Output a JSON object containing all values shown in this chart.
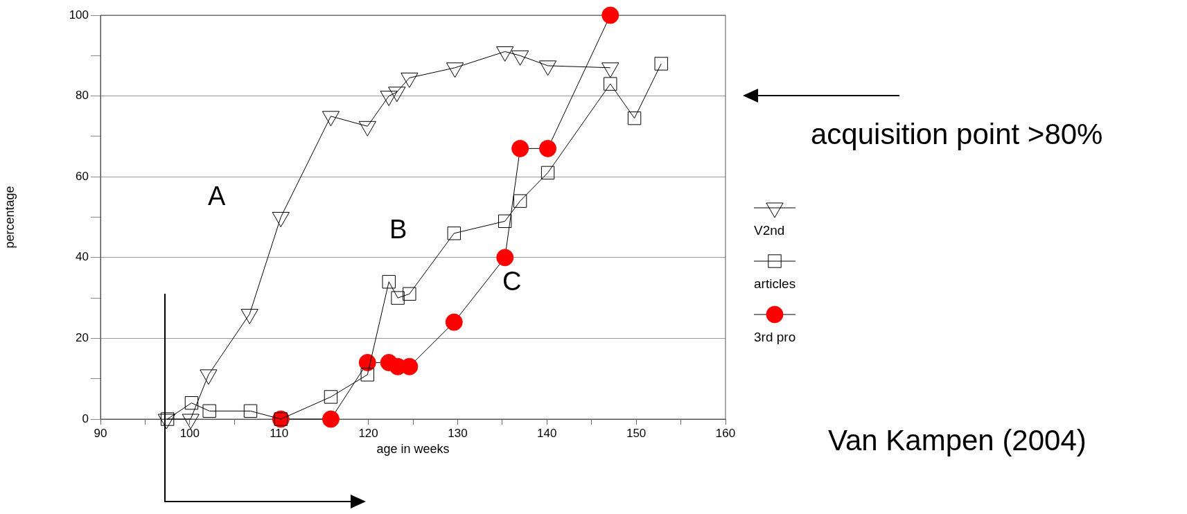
{
  "chart_data": {
    "type": "line",
    "xlabel": "age in weeks",
    "ylabel": "percentage",
    "xlim": [
      90,
      160
    ],
    "ylim": [
      0,
      100
    ],
    "xticks": [
      90,
      {
        "value": 95,
        "label": null
      },
      100,
      {
        "value": 105,
        "label": null
      },
      110,
      {
        "value": 115,
        "label": null
      },
      120,
      {
        "value": 125,
        "label": null
      },
      130,
      {
        "value": 135,
        "label": null
      },
      140,
      {
        "value": 145,
        "label": null
      },
      150,
      {
        "value": 155,
        "label": null
      },
      160
    ],
    "yticks": [
      0,
      {
        "value": 10,
        "label": null
      },
      20,
      {
        "value": 30,
        "label": null
      },
      40,
      {
        "value": 50,
        "label": null
      },
      60,
      {
        "value": 70,
        "label": null
      },
      80,
      {
        "value": 90,
        "label": null
      },
      100
    ],
    "grid": "y",
    "legend": "right",
    "series": [
      {
        "name": "V2nd",
        "color": "#000000",
        "marker": "triangle",
        "x": [
          97.4,
          100.1,
          102.1,
          106.7,
          110.2,
          115.8,
          119.9,
          122.3,
          123.2,
          124.6,
          129.7,
          135.3,
          137.0,
          140.1,
          147.1
        ],
        "values": [
          0,
          0,
          11,
          26,
          50,
          75,
          72.5,
          80,
          81,
          84.5,
          87,
          91,
          90,
          87.5,
          87
        ]
      },
      {
        "name": "articles",
        "color": "#000000",
        "marker": "square",
        "x": [
          97.5,
          100.2,
          102.2,
          106.8,
          110.2,
          115.8,
          119.9,
          122.3,
          123.3,
          124.6,
          129.6,
          135.3,
          137.0,
          140.1,
          147.1,
          149.8,
          152.8
        ],
        "values": [
          0,
          4,
          2,
          2,
          0,
          5.5,
          11,
          34,
          30,
          31,
          46,
          49,
          54,
          61,
          83,
          74.5,
          88
        ]
      },
      {
        "name": "3rd pro",
        "color": "#ff0000",
        "marker": "circle",
        "x": [
          110.2,
          115.8,
          119.9,
          122.3,
          123.3,
          124.6,
          129.6,
          135.3,
          137.0,
          140.1,
          147.1
        ],
        "values": [
          0,
          0,
          14,
          14,
          13,
          13,
          24,
          40,
          67,
          67,
          100
        ]
      }
    ],
    "annotations": [
      "A",
      "B",
      "C",
      "acquisition point >80%",
      "Van Kampen (2004)"
    ]
  }
}
